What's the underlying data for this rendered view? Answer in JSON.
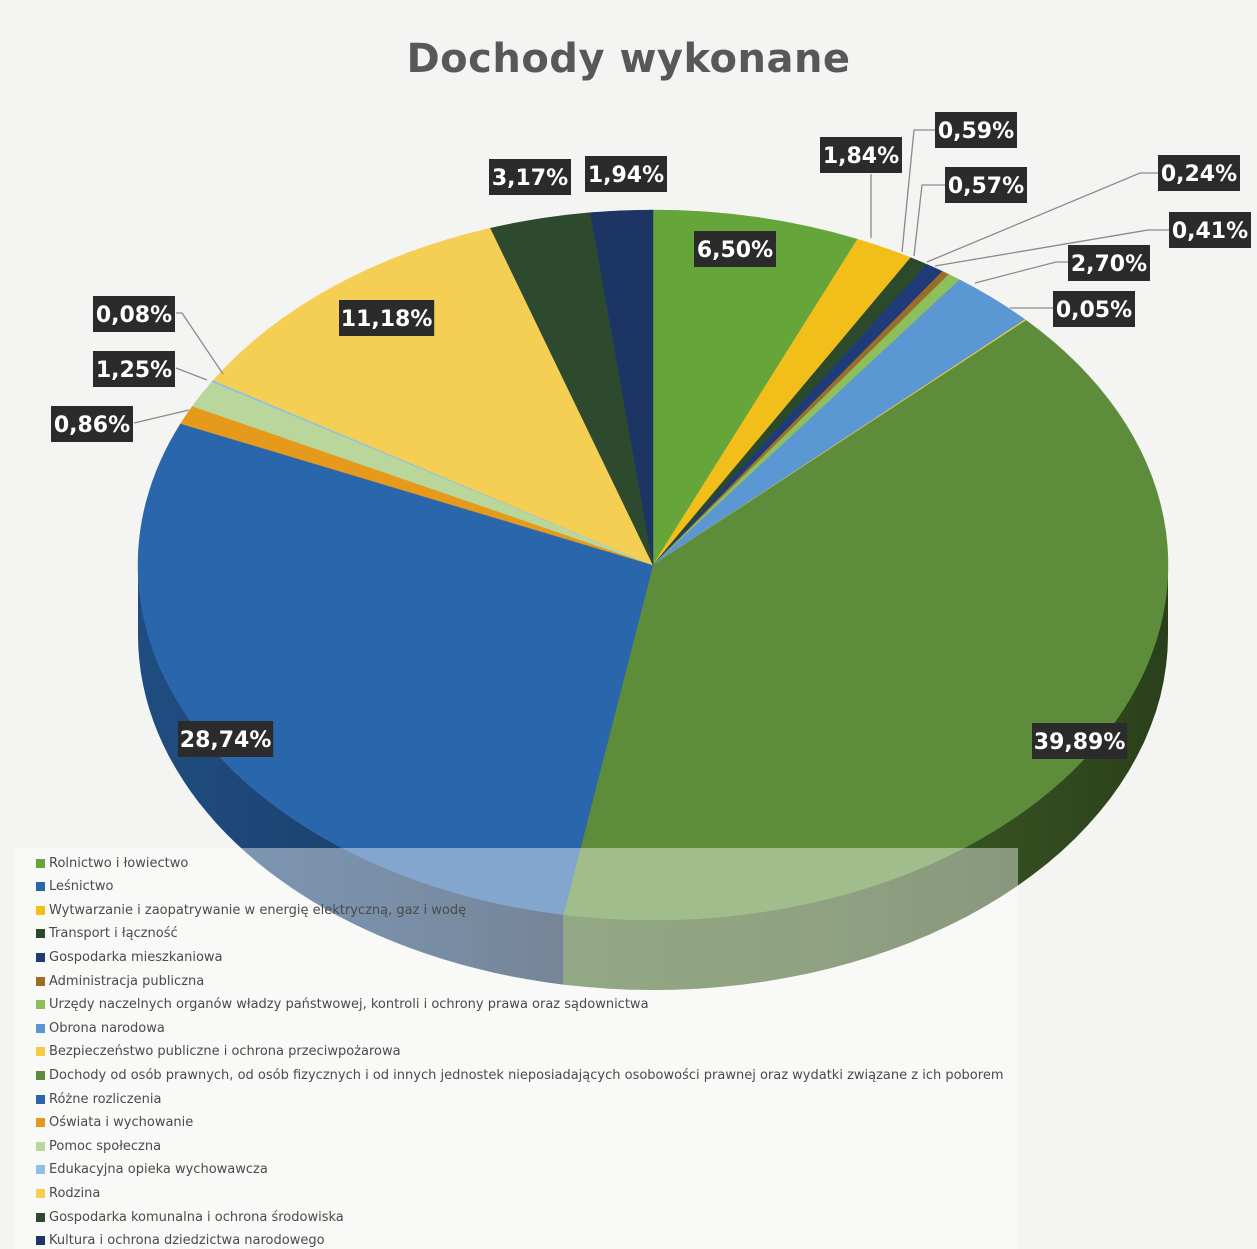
{
  "chart_data": {
    "type": "pie",
    "title": "Dochody wykonane",
    "slices": [
      {
        "name": "Rolnictwo i łowiectwo",
        "value": 6.5,
        "label": "6,50%",
        "color": "#66a53a"
      },
      {
        "name": "Wytwarzanie i zaopatrywanie w energię elektryczną, gaz i wodę",
        "value": 1.84,
        "label": "1,84%",
        "color": "#f2be1a"
      },
      {
        "name": "Transport i łączność",
        "value": 0.59,
        "label": "0,59%",
        "color": "#2b4a2b"
      },
      {
        "name": "Gospodarka mieszkaniowa",
        "value": 0.57,
        "label": "0,57%",
        "color": "#1f3c78"
      },
      {
        "name": "Administracja publiczna",
        "value": 0.24,
        "label": "0,24%",
        "color": "#9c6d27"
      },
      {
        "name": "Urzędy naczelnych organów władzy państwowej, kontroli i ochrony prawa oraz sądownictwa",
        "value": 0.41,
        "label": "0,41%",
        "color": "#8dc05c"
      },
      {
        "name": "Obrona narodowa",
        "value": 2.7,
        "label": "2,70%",
        "color": "#5b97d2"
      },
      {
        "name": "Bezpieczeństwo publiczne i ochrona przeciwpożarowa",
        "value": 0.05,
        "label": "0,05%",
        "color": "#f3cb48"
      },
      {
        "name": "Dochody od osób prawnych, od osób fizycznych i od innych jednostek nieposiadających osobowości prawnej oraz wydatki związane z ich poborem",
        "value": 39.89,
        "label": "39,89%",
        "color": "#5d8d3a"
      },
      {
        "name": "Różne rozliczenia",
        "value": 28.74,
        "label": "28,74%",
        "color": "#2a66ab"
      },
      {
        "name": "Oświata i wychowanie",
        "value": 0.86,
        "label": "0,86%",
        "color": "#e59a1c"
      },
      {
        "name": "Pomoc społeczna",
        "value": 1.25,
        "label": "1,25%",
        "color": "#b9d79a"
      },
      {
        "name": "Edukacyjna opieka wychowawcza",
        "value": 0.08,
        "label": "0,08%",
        "color": "#8fbfe6"
      },
      {
        "name": "Rodzina",
        "value": 11.18,
        "label": "11,18%",
        "color": "#f5cf54"
      },
      {
        "name": "Gospodarka komunalna i ochrona środowiska",
        "value": 3.17,
        "label": "3,17%",
        "color": "#2e4a2e"
      },
      {
        "name": "Kultura i ochrona dziedzictwa narodowego",
        "value": 1.94,
        "label": "1,94%",
        "color": "#1c3564"
      }
    ],
    "legend": {
      "placement": "bottom-left",
      "entries": [
        {
          "name": "Rolnictwo i łowiectwo",
          "color": "#66a53a"
        },
        {
          "name": "Leśnictwo",
          "color": "#2a66ab"
        },
        {
          "name": "Wytwarzanie i zaopatrywanie w energię elektryczną, gaz i wodę",
          "color": "#f2be1a"
        },
        {
          "name": "Transport i łączność",
          "color": "#2b4a2b"
        },
        {
          "name": "Gospodarka mieszkaniowa",
          "color": "#1f3c78"
        },
        {
          "name": "Administracja publiczna",
          "color": "#9c6d27"
        },
        {
          "name": "Urzędy naczelnych organów władzy państwowej, kontroli i ochrony prawa oraz sądownictwa",
          "color": "#8dc05c"
        },
        {
          "name": "Obrona narodowa",
          "color": "#5b97d2"
        },
        {
          "name": "Bezpieczeństwo publiczne i ochrona przeciwpożarowa",
          "color": "#f3cb48"
        },
        {
          "name": "Dochody od osób prawnych, od osób fizycznych i od innych jednostek nieposiadających osobowości prawnej oraz wydatki związane z ich poborem",
          "color": "#5d8d3a"
        },
        {
          "name": "Różne rozliczenia",
          "color": "#2a66ab"
        },
        {
          "name": "Oświata i wychowanie",
          "color": "#e59a1c"
        },
        {
          "name": "Pomoc społeczna",
          "color": "#b9d79a"
        },
        {
          "name": "Edukacyjna opieka wychowawcza",
          "color": "#8fbfe6"
        },
        {
          "name": "Rodzina",
          "color": "#f5cf54"
        },
        {
          "name": "Gospodarka komunalna i ochrona środowiska",
          "color": "#2e4a2e"
        },
        {
          "name": "Kultura i ochrona dziedzictwa narodowego",
          "color": "#1c3564"
        }
      ]
    }
  }
}
